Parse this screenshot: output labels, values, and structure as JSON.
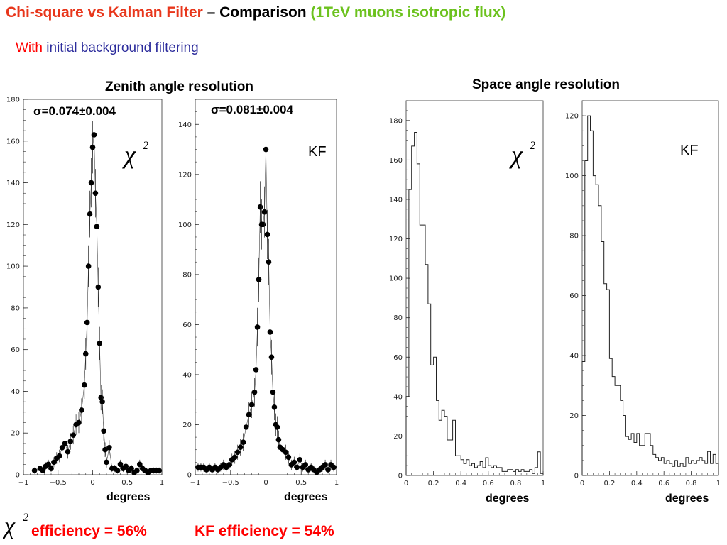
{
  "header": {
    "title_part1": "Chi-square vs Kalman Filter",
    "title_part2": " – Comparison ",
    "title_part3": "(1TeV muons isotropic flux)",
    "subtitle_part1": "With ",
    "subtitle_part2": "initial background filtering",
    "colors": {
      "red": "#e8361b",
      "black": "#000000",
      "green": "#6cc21e",
      "blue": "#2c2c9c",
      "subtitle_red": "#ff0000"
    }
  },
  "sections": {
    "zenith_title": "Zenith angle resolution",
    "space_title": "Space angle resolution"
  },
  "footer": {
    "chi_eff": "efficiency = 56%",
    "kf_eff": "KF efficiency = 54%"
  },
  "chart_data": [
    {
      "id": "zenith_chi2",
      "type": "scatter",
      "panel_label": "χ²",
      "annotation": "σ=0.074±0.004",
      "xlabel": "degrees",
      "xlim": [
        -1,
        1
      ],
      "ylim": [
        0,
        180
      ],
      "xticks": [
        -1,
        -0.5,
        0,
        0.5,
        1
      ],
      "xtick_labels": [
        "−1",
        "−0.5",
        "0",
        "0.5",
        "1"
      ],
      "yticks": [
        0,
        20,
        40,
        60,
        80,
        100,
        120,
        140,
        160,
        180
      ],
      "x": [
        -0.84,
        -0.76,
        -0.72,
        -0.68,
        -0.64,
        -0.6,
        -0.56,
        -0.52,
        -0.48,
        -0.44,
        -0.4,
        -0.36,
        -0.32,
        -0.28,
        -0.24,
        -0.2,
        -0.16,
        -0.12,
        -0.1,
        -0.08,
        -0.06,
        -0.04,
        -0.02,
        0.0,
        0.02,
        0.04,
        0.06,
        0.08,
        0.1,
        0.12,
        0.14,
        0.16,
        0.18,
        0.2,
        0.24,
        0.28,
        0.32,
        0.36,
        0.4,
        0.44,
        0.48,
        0.52,
        0.56,
        0.6,
        0.64,
        0.68,
        0.72,
        0.76,
        0.8,
        0.84,
        0.88,
        0.92,
        0.96
      ],
      "y": [
        2,
        3,
        2,
        4,
        5,
        3,
        6,
        8,
        9,
        13,
        15,
        11,
        16,
        19,
        24,
        25,
        31,
        43,
        58,
        73,
        100,
        125,
        140,
        157,
        163,
        135,
        119,
        90,
        63,
        37,
        35,
        21,
        12,
        6,
        13,
        3,
        3,
        2,
        5,
        3,
        4,
        2,
        3,
        1,
        2,
        5,
        3,
        2,
        1,
        2,
        2,
        2,
        2
      ],
      "err": [
        1.5,
        1.7,
        1.5,
        2,
        2.2,
        1.7,
        2.4,
        2.8,
        3,
        3.6,
        3.9,
        3.3,
        4,
        4.4,
        4.9,
        5,
        5.6,
        6.6,
        7.6,
        8.5,
        10,
        11.2,
        11.8,
        12.5,
        12.8,
        11.6,
        10.9,
        9.5,
        7.9,
        6.1,
        5.9,
        4.6,
        3.5,
        2.5,
        3.6,
        1.7,
        1.7,
        1.5,
        2.2,
        1.7,
        2,
        1.5,
        1.7,
        1,
        1.5,
        2.2,
        1.7,
        1.5,
        1,
        1.5,
        1.5,
        1.5,
        1.5
      ]
    },
    {
      "id": "zenith_kf",
      "type": "scatter",
      "panel_label": "KF",
      "annotation": "σ=0.081±0.004",
      "xlabel": "degrees",
      "xlim": [
        -1,
        1
      ],
      "ylim": [
        0,
        150
      ],
      "xticks": [
        -1,
        -0.5,
        0,
        0.5,
        1
      ],
      "xtick_labels": [
        "−1",
        "−0.5",
        "0",
        "0.5",
        "1"
      ],
      "yticks": [
        0,
        20,
        40,
        60,
        80,
        100,
        120,
        140
      ],
      "x": [
        -0.96,
        -0.92,
        -0.88,
        -0.84,
        -0.8,
        -0.76,
        -0.72,
        -0.68,
        -0.64,
        -0.6,
        -0.56,
        -0.52,
        -0.48,
        -0.44,
        -0.4,
        -0.36,
        -0.32,
        -0.28,
        -0.24,
        -0.2,
        -0.16,
        -0.14,
        -0.12,
        -0.1,
        -0.08,
        -0.06,
        -0.04,
        -0.02,
        0.0,
        0.02,
        0.04,
        0.06,
        0.08,
        0.1,
        0.12,
        0.14,
        0.16,
        0.18,
        0.2,
        0.24,
        0.28,
        0.32,
        0.36,
        0.4,
        0.44,
        0.48,
        0.52,
        0.56,
        0.6,
        0.64,
        0.68,
        0.72,
        0.76,
        0.8,
        0.84,
        0.88,
        0.92,
        0.96
      ],
      "y": [
        3,
        3,
        3,
        2,
        3,
        2,
        3,
        2,
        3,
        4,
        3,
        4,
        6,
        7,
        9,
        11,
        13,
        19,
        24,
        28,
        33,
        42,
        59,
        78,
        107,
        100,
        100,
        105,
        130,
        96,
        85,
        57,
        47,
        33,
        27,
        20,
        19,
        14,
        11,
        10,
        9,
        7,
        4,
        5,
        3,
        6,
        3,
        4,
        2,
        3,
        2,
        1,
        2,
        3,
        4,
        2,
        4,
        3
      ],
      "err": [
        1.7,
        1.7,
        1.7,
        1.5,
        1.7,
        1.5,
        1.7,
        1.5,
        1.7,
        2,
        1.7,
        2,
        2.4,
        2.6,
        3,
        3.3,
        3.6,
        4.4,
        4.9,
        5.3,
        5.7,
        6.5,
        7.7,
        8.8,
        10.3,
        10,
        10,
        10.2,
        11.4,
        9.8,
        9.2,
        7.5,
        6.9,
        5.7,
        5.2,
        4.5,
        4.4,
        3.7,
        3.3,
        3.2,
        3,
        2.6,
        2,
        2.2,
        1.7,
        2.4,
        1.7,
        2,
        1.5,
        1.7,
        1.5,
        1,
        1.5,
        1.7,
        2,
        1.5,
        2,
        1.7
      ]
    },
    {
      "id": "space_chi2",
      "type": "histogram",
      "panel_label": "χ²",
      "xlabel": "degrees",
      "xlim": [
        0,
        1
      ],
      "ylim": [
        0,
        190
      ],
      "xticks": [
        0,
        0.2,
        0.4,
        0.6,
        0.8,
        1
      ],
      "xtick_labels": [
        "0",
        "0.2",
        "0.4",
        "0.6",
        "0.8",
        "1"
      ],
      "yticks": [
        0,
        20,
        40,
        60,
        80,
        100,
        120,
        140,
        160,
        180
      ],
      "bin_edges": [
        0,
        0.02,
        0.04,
        0.06,
        0.08,
        0.1,
        0.12,
        0.14,
        0.16,
        0.18,
        0.2,
        0.22,
        0.24,
        0.26,
        0.28,
        0.3,
        0.32,
        0.34,
        0.36,
        0.38,
        0.4,
        0.42,
        0.44,
        0.46,
        0.48,
        0.5,
        0.52,
        0.54,
        0.56,
        0.58,
        0.6,
        0.62,
        0.64,
        0.66,
        0.68,
        0.7,
        0.72,
        0.74,
        0.76,
        0.78,
        0.8,
        0.82,
        0.84,
        0.86,
        0.88,
        0.9,
        0.92,
        0.94,
        0.96,
        0.98,
        1.0
      ],
      "counts": [
        40,
        145,
        167,
        174,
        158,
        127,
        127,
        107,
        87,
        56,
        60,
        38,
        28,
        33,
        30,
        18,
        18,
        28,
        10,
        10,
        8,
        6,
        8,
        5,
        6,
        4,
        5,
        7,
        4,
        9,
        5,
        4,
        5,
        4,
        4,
        2,
        2,
        3,
        3,
        2,
        3,
        2,
        3,
        2,
        2,
        3,
        1,
        4,
        12,
        1
      ]
    },
    {
      "id": "space_kf",
      "type": "histogram",
      "panel_label": "KF",
      "xlabel": "degrees",
      "xlim": [
        0,
        1
      ],
      "ylim": [
        0,
        125
      ],
      "xticks": [
        0,
        0.2,
        0.4,
        0.6,
        0.8,
        1
      ],
      "xtick_labels": [
        "0",
        "0.2",
        "0.4",
        "0.6",
        "0.8",
        "1"
      ],
      "yticks": [
        0,
        20,
        40,
        60,
        80,
        100,
        120
      ],
      "bin_edges": [
        0,
        0.02,
        0.04,
        0.06,
        0.08,
        0.1,
        0.12,
        0.14,
        0.16,
        0.18,
        0.2,
        0.22,
        0.24,
        0.26,
        0.28,
        0.3,
        0.32,
        0.34,
        0.36,
        0.38,
        0.4,
        0.42,
        0.44,
        0.46,
        0.48,
        0.5,
        0.52,
        0.54,
        0.56,
        0.58,
        0.6,
        0.62,
        0.64,
        0.66,
        0.68,
        0.7,
        0.72,
        0.74,
        0.76,
        0.78,
        0.8,
        0.82,
        0.84,
        0.86,
        0.88,
        0.9,
        0.92,
        0.94,
        0.96,
        0.98,
        1.0
      ],
      "counts": [
        38,
        105,
        120,
        115,
        100,
        97,
        90,
        78,
        64,
        62,
        39,
        33,
        30,
        30,
        25,
        20,
        13,
        12,
        14,
        11,
        14,
        10,
        10,
        14,
        14,
        10,
        7,
        6,
        5,
        6,
        4,
        5,
        4,
        3,
        5,
        3,
        4,
        3,
        6,
        4,
        5,
        4,
        5,
        6,
        5,
        4,
        8,
        4,
        7,
        4
      ]
    }
  ]
}
